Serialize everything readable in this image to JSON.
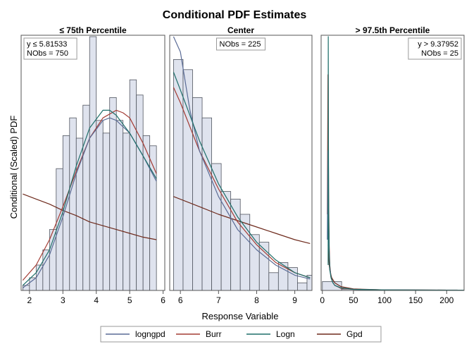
{
  "chart_data": {
    "type": "bar",
    "title": "Conditional PDF Estimates",
    "xlabel": "Response Variable",
    "ylabel": "Conditional (Scaled) PDF",
    "grid": false,
    "legend_position": "bottom",
    "series_styles": [
      {
        "name": "logngpd",
        "color": "#5a6b96"
      },
      {
        "name": "Burr",
        "color": "#a33b33"
      },
      {
        "name": "Logn",
        "color": "#1f6f6a"
      },
      {
        "name": "Gpd",
        "color": "#6e2a1c"
      }
    ],
    "panels": [
      {
        "title": "≤ 75th Percentile",
        "inset": [
          "y ≤ 5.81533",
          "NObs = 750"
        ],
        "inset_position": "top-left",
        "xlim": [
          1.75,
          6.05
        ],
        "xticks": [
          2,
          3,
          4,
          5,
          6
        ],
        "ylim": [
          0,
          1
        ],
        "histogram": {
          "bin_start": 1.8,
          "bin_width": 0.2,
          "heights": [
            0.02,
            0.05,
            0.1,
            0.16,
            0.24,
            0.48,
            0.61,
            0.68,
            0.6,
            0.73,
            1.0,
            0.67,
            0.62,
            0.76,
            0.67,
            0.62,
            0.83,
            0.77,
            0.61,
            0.57
          ]
        },
        "curves": [
          {
            "name": "logngpd",
            "x": [
              1.8,
              2.2,
              2.6,
              3.0,
              3.4,
              3.8,
              4.2,
              4.4,
              4.6,
              5.0,
              5.4,
              5.8
            ],
            "y": [
              0.01,
              0.05,
              0.14,
              0.29,
              0.46,
              0.6,
              0.67,
              0.68,
              0.67,
              0.62,
              0.53,
              0.43
            ]
          },
          {
            "name": "Burr",
            "x": [
              1.8,
              2.2,
              2.6,
              3.0,
              3.4,
              3.8,
              4.2,
              4.6,
              4.8,
              5.0,
              5.4,
              5.8
            ],
            "y": [
              0.04,
              0.1,
              0.2,
              0.33,
              0.47,
              0.6,
              0.68,
              0.71,
              0.7,
              0.68,
              0.58,
              0.46
            ]
          },
          {
            "name": "Logn",
            "x": [
              1.8,
              2.2,
              2.6,
              3.0,
              3.4,
              3.8,
              4.2,
              4.4,
              4.6,
              5.0,
              5.4,
              5.8
            ],
            "y": [
              0.02,
              0.07,
              0.16,
              0.31,
              0.49,
              0.64,
              0.71,
              0.71,
              0.69,
              0.62,
              0.53,
              0.44
            ]
          },
          {
            "name": "Gpd",
            "x": [
              1.8,
              2.2,
              2.6,
              3.0,
              3.4,
              3.8,
              4.2,
              4.6,
              5.0,
              5.4,
              5.8
            ],
            "y": [
              0.38,
              0.36,
              0.34,
              0.315,
              0.295,
              0.27,
              0.255,
              0.24,
              0.225,
              0.21,
              0.2
            ]
          }
        ]
      },
      {
        "title": "Center",
        "inset": [
          "NObs = 225"
        ],
        "inset_position": "top-center",
        "xlim": [
          5.72,
          9.45
        ],
        "xticks": [
          6,
          7,
          8,
          9
        ],
        "ylim": [
          0,
          1
        ],
        "histogram": {
          "bin_start": 5.82,
          "bin_width": 0.25,
          "heights": [
            0.91,
            0.87,
            0.76,
            0.68,
            0.5,
            0.39,
            0.36,
            0.3,
            0.22,
            0.19,
            0.07,
            0.11,
            0.09,
            0.03,
            0.06
          ]
        },
        "curves": [
          {
            "name": "logngpd",
            "x": [
              5.82,
              6.0,
              6.25,
              6.5,
              7.0,
              7.5,
              8.0,
              8.5,
              9.0,
              9.4
            ],
            "y": [
              1.0,
              0.94,
              0.71,
              0.55,
              0.37,
              0.24,
              0.16,
              0.1,
              0.06,
              0.045
            ]
          },
          {
            "name": "Burr",
            "x": [
              5.82,
              6.0,
              6.5,
              7.0,
              7.5,
              8.0,
              8.5,
              9.0,
              9.4
            ],
            "y": [
              0.8,
              0.74,
              0.55,
              0.4,
              0.27,
              0.18,
              0.11,
              0.07,
              0.05
            ]
          },
          {
            "name": "Logn",
            "x": [
              5.82,
              6.0,
              6.5,
              7.0,
              7.5,
              8.0,
              8.5,
              9.0,
              9.4
            ],
            "y": [
              0.86,
              0.79,
              0.59,
              0.42,
              0.29,
              0.19,
              0.12,
              0.07,
              0.05
            ]
          },
          {
            "name": "Gpd",
            "x": [
              5.82,
              6.5,
              7.0,
              7.5,
              8.0,
              8.5,
              9.0,
              9.4
            ],
            "y": [
              0.37,
              0.33,
              0.3,
              0.275,
              0.25,
              0.225,
              0.2,
              0.185
            ]
          }
        ]
      },
      {
        "title": "> 97.5th Percentile",
        "inset": [
          "y > 9.37952",
          "NObs = 25"
        ],
        "inset_position": "top-right",
        "xlim": [
          -2,
          228
        ],
        "xticks": [
          0,
          50,
          100,
          150,
          200
        ],
        "ylim": [
          0,
          1
        ],
        "histogram": {
          "bin_start": 0,
          "bin_width": 31,
          "heights": [
            0.035,
            0.005,
            0.0,
            0.0,
            0.0,
            0.0,
            0.002
          ]
        },
        "curves": [
          {
            "name": "logngpd",
            "x": [
              8,
              9,
              10,
              11,
              12,
              14,
              17,
              20,
              30,
              50,
              100,
              228
            ],
            "y": [
              0.2,
              0.55,
              0.3,
              0.15,
              0.09,
              0.05,
              0.03,
              0.02,
              0.01,
              0.004,
              0.002,
              0.001
            ]
          },
          {
            "name": "Burr",
            "x": [
              8,
              9,
              10,
              11,
              12,
              14,
              17,
              20,
              30,
              50,
              100,
              228
            ],
            "y": [
              0.3,
              0.85,
              0.4,
              0.18,
              0.1,
              0.05,
              0.03,
              0.02,
              0.008,
              0.004,
              0.002,
              0.001
            ]
          },
          {
            "name": "Logn",
            "x": [
              9.3,
              9.5,
              9.8,
              10.2,
              11,
              12,
              14,
              17,
              20,
              30,
              50,
              100,
              228
            ],
            "y": [
              0.1,
              1.0,
              0.6,
              0.3,
              0.15,
              0.08,
              0.05,
              0.03,
              0.02,
              0.01,
              0.004,
              0.002,
              0.001
            ]
          },
          {
            "name": "Gpd",
            "x": [
              9.38,
              10,
              11,
              12,
              15,
              20,
              30,
              50,
              100,
              228
            ],
            "y": [
              0.18,
              0.14,
              0.1,
              0.08,
              0.05,
              0.03,
              0.015,
              0.006,
              0.002,
              0.001
            ]
          }
        ]
      }
    ]
  }
}
